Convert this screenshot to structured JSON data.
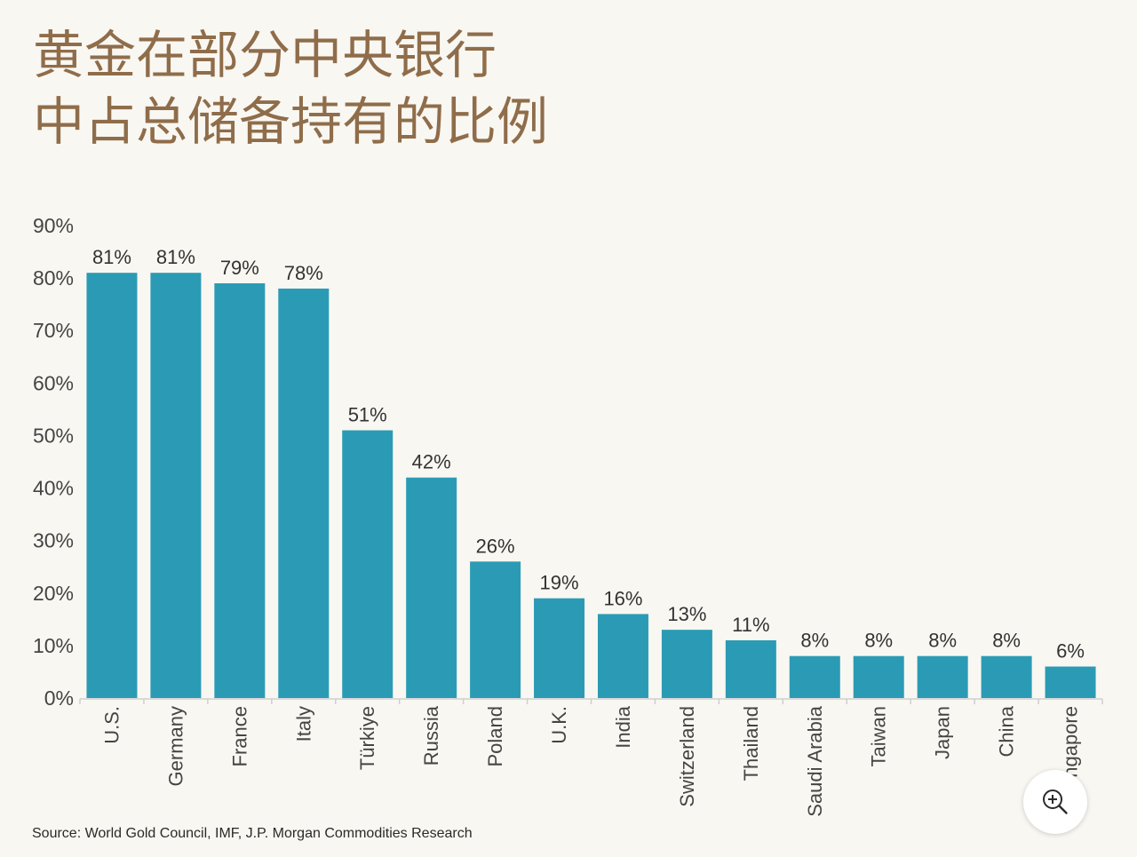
{
  "colors": {
    "title": "#8f6d4a",
    "bar": "#2b9bb5"
  },
  "source": "Source: World Gold Council, IMF, J.P. Morgan Commodities Research",
  "zoom_button": {
    "icon": "zoom-in-icon"
  },
  "chart_data": {
    "type": "bar",
    "title_lines": [
      "黄金在部分中央银行",
      "中占总储备持有的比例"
    ],
    "categories": [
      "U.S.",
      "Germany",
      "France",
      "Italy",
      "Türkiye",
      "Russia",
      "Poland",
      "U.K.",
      "India",
      "Switzerland",
      "Thailand",
      "Saudi Arabia",
      "Taiwan",
      "Japan",
      "China",
      "Singapore"
    ],
    "values": [
      81,
      81,
      79,
      78,
      51,
      42,
      26,
      19,
      16,
      13,
      11,
      8,
      8,
      8,
      8,
      6
    ],
    "data_labels": [
      "81%",
      "81%",
      "79%",
      "78%",
      "51%",
      "42%",
      "26%",
      "19%",
      "16%",
      "13%",
      "11%",
      "8%",
      "8%",
      "8%",
      "8%",
      "6%"
    ],
    "y_ticks": [
      0,
      10,
      20,
      30,
      40,
      50,
      60,
      70,
      80,
      90
    ],
    "y_tick_labels": [
      "0%",
      "10%",
      "20%",
      "30%",
      "40%",
      "50%",
      "60%",
      "70%",
      "80%",
      "90%"
    ],
    "ylim": [
      0,
      90
    ],
    "grid": false,
    "legend": "none"
  }
}
